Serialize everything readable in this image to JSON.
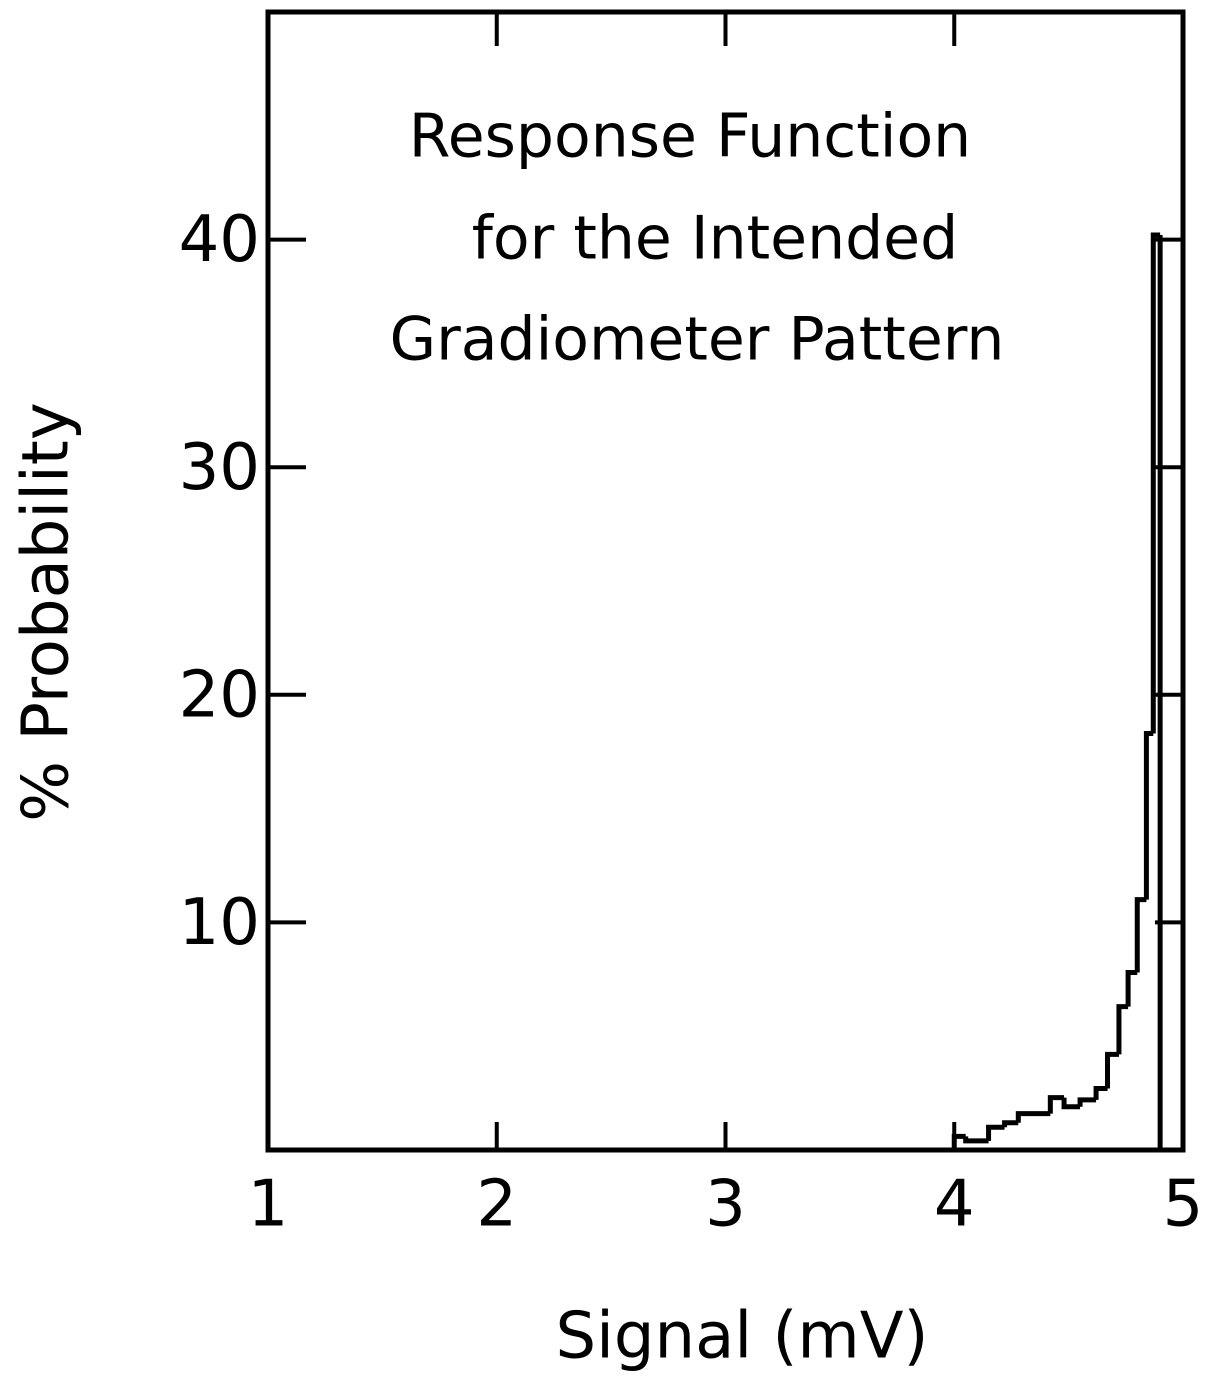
{
  "chart_data": {
    "type": "step",
    "title": [
      "Response Function",
      "for the Intended",
      "Gradiometer Pattern"
    ],
    "xlabel": "Signal (mV)",
    "ylabel": "% Probability",
    "x": [
      1,
      3.1,
      4.0,
      4.05,
      4.15,
      4.22,
      4.28,
      4.42,
      4.48,
      4.55,
      4.62,
      4.67,
      4.72,
      4.76,
      4.8,
      4.84,
      4.87,
      4.9
    ],
    "values": [
      0,
      0,
      0.6,
      0.4,
      1.0,
      1.2,
      1.6,
      2.3,
      1.9,
      2.2,
      2.7,
      4.2,
      6.3,
      7.8,
      11,
      18.3,
      40.2,
      0
    ],
    "color": "#000000",
    "xlim": [
      1,
      5
    ],
    "xticks": [
      1,
      2,
      3,
      4,
      5
    ],
    "ylim": [
      0,
      50
    ],
    "yticks": [
      10,
      20,
      30,
      40
    ]
  }
}
